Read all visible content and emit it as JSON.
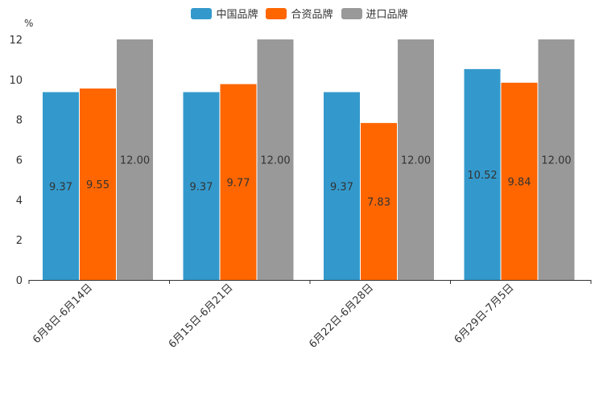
{
  "chart_data": {
    "type": "bar",
    "title": "",
    "unit": "%",
    "xlabel": "",
    "ylabel": "%",
    "ylim": [
      0,
      12
    ],
    "yticks": [
      0,
      2,
      4,
      6,
      8,
      10,
      12
    ],
    "grid": false,
    "legend_position": "top-center",
    "categories": [
      "6月8日-6月14日",
      "6月15日-6月21日",
      "6月22日-6月28日",
      "6月29日-7月5日"
    ],
    "series": [
      {
        "name": "中国品牌",
        "color": "#3399CC",
        "values": [
          9.37,
          9.37,
          9.37,
          10.52
        ],
        "labels": [
          "9.37",
          "9.37",
          "9.37",
          "10.52"
        ]
      },
      {
        "name": "合资品牌",
        "color": "#FF6600",
        "values": [
          9.55,
          9.77,
          7.83,
          9.84
        ],
        "labels": [
          "9.55",
          "9.77",
          "7.83",
          "9.84"
        ]
      },
      {
        "name": "进口品牌",
        "color": "#999999",
        "values": [
          12.0,
          12.0,
          12.0,
          12.0
        ],
        "labels": [
          "12.00",
          "12.00",
          "12.00",
          "12.00"
        ]
      }
    ]
  }
}
